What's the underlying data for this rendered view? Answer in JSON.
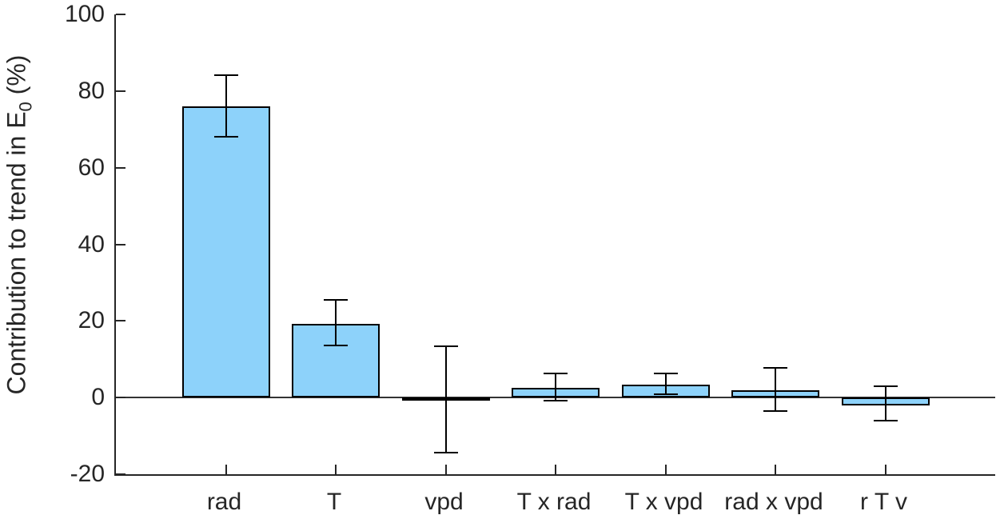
{
  "figure": {
    "background": "#ffffff"
  },
  "chart_data": {
    "type": "bar",
    "title": "",
    "xlabel": "",
    "ylabel": "Contribution to trend in E_0 (%)",
    "ylabel_parts": {
      "prefix": "Contribution to trend in E",
      "sub": "0",
      "suffix": " (%)"
    },
    "categories": [
      "rad",
      "T",
      "vpd",
      "T x rad",
      "T x vpd",
      "rad x vpd",
      "r T v"
    ],
    "values": [
      76.0,
      19.2,
      -0.9,
      2.5,
      3.4,
      1.9,
      -2.1
    ],
    "error_low": [
      68.0,
      13.5,
      -14.3,
      -0.9,
      0.8,
      -3.5,
      -6.1
    ],
    "error_high": [
      84.1,
      25.6,
      13.3,
      6.2,
      6.4,
      7.7,
      3.0
    ],
    "ylim": [
      -20,
      100
    ],
    "yticks": [
      -20,
      0,
      20,
      40,
      60,
      80,
      100
    ],
    "grid": false,
    "legend": null,
    "bar_color": "#8DD2FA",
    "bar_edge_color": "#000000",
    "errorbar_color": "#000000",
    "axis_color": "#262626",
    "bar_width_fraction": 0.8
  }
}
